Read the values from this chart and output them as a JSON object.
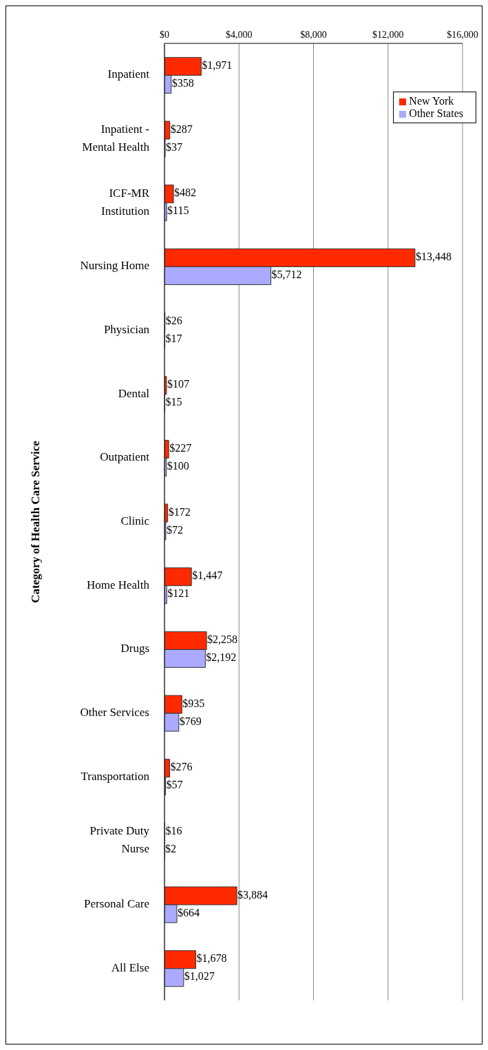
{
  "chart_data": {
    "type": "bar",
    "orientation": "horizontal",
    "ylabel": "Category of Health Care Service",
    "categories": [
      "Inpatient",
      "Inpatient - Mental Health",
      "ICF-MR Institution",
      "Nursing Home",
      "Physician",
      "Dental",
      "Outpatient",
      "Clinic",
      "Home Health",
      "Drugs",
      "Other Services",
      "Transportation",
      "Private Duty Nurse",
      "Personal Care",
      "All Else"
    ],
    "series": [
      {
        "name": "New York",
        "color": "#ff2a00",
        "values": [
          1971,
          287,
          482,
          13448,
          26,
          107,
          227,
          172,
          1447,
          2258,
          935,
          276,
          16,
          3884,
          1678
        ],
        "value_labels": [
          "$1,971",
          "$287",
          "$482",
          "$13,448",
          "$26",
          "$107",
          "$227",
          "$172",
          "$1,447",
          "$2,258",
          "$935",
          "$276",
          "$16",
          "$3,884",
          "$1,678"
        ]
      },
      {
        "name": "Other States",
        "color": "#aaaaff",
        "values": [
          358,
          37,
          115,
          5712,
          17,
          15,
          100,
          72,
          121,
          2192,
          769,
          57,
          2,
          664,
          1027
        ],
        "value_labels": [
          "$358",
          "$37",
          "$115",
          "$5,712",
          "$17",
          "$15",
          "$100",
          "$72",
          "$121",
          "$2,192",
          "$769",
          "$57",
          "$2",
          "$664",
          "$1,027"
        ]
      }
    ],
    "xlim": [
      0,
      16000
    ],
    "xticks": [
      {
        "value": 0,
        "label": "$0"
      },
      {
        "value": 4000,
        "label": "$4,000"
      },
      {
        "value": 8000,
        "label": "$8,000"
      },
      {
        "value": 12000,
        "label": "$12,000"
      },
      {
        "value": 16000,
        "label": "$16,000"
      }
    ],
    "grid": "x",
    "legend": "top right"
  }
}
